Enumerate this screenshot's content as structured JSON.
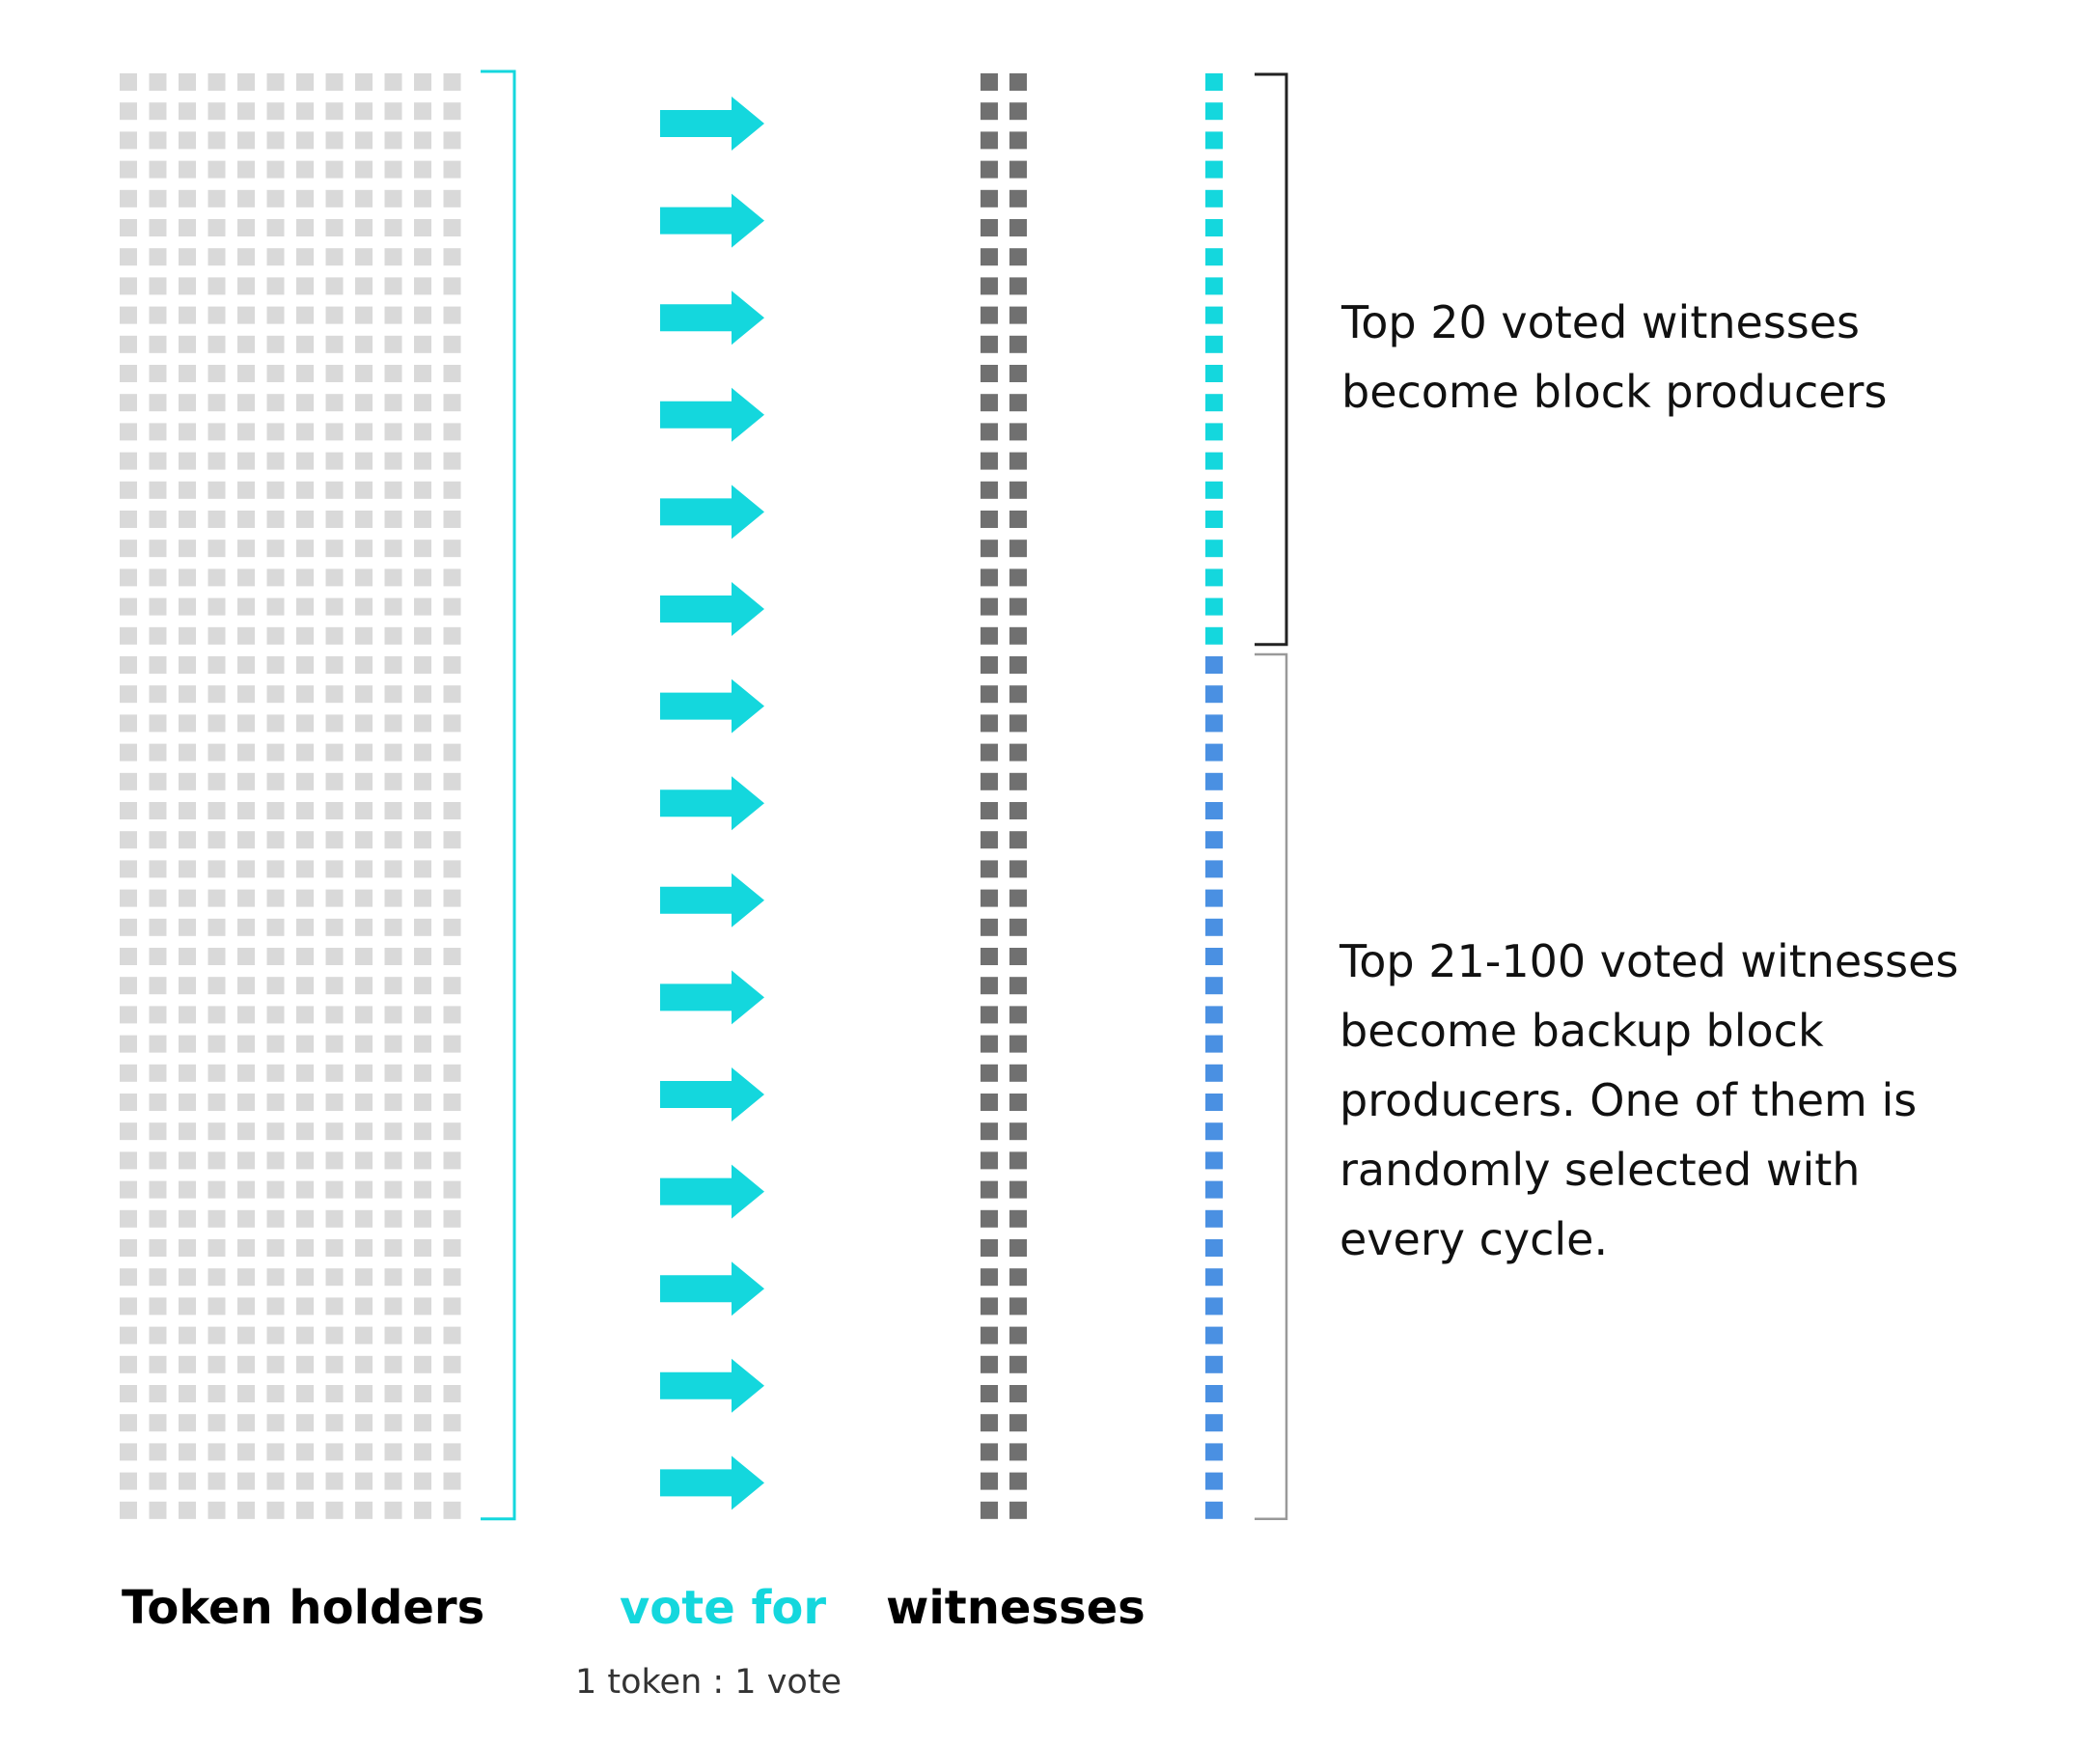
{
  "labels": {
    "token_holders": "Token holders",
    "vote_for": "vote for",
    "witnesses": "witnesses",
    "vote_ratio": "1 token : 1 vote"
  },
  "annotations": {
    "top_producers": "Top 20 voted witnesses\nbecome block producers",
    "backup_producers": "Top 21-100 voted witnesses\nbecome backup block\nproducers. One of them is\nrandomly selected with\nevery cycle."
  },
  "diagram": {
    "token_holder_columns": 12,
    "token_holder_rows": 50,
    "witness_columns": 2,
    "witness_rows": 50,
    "arrow_count": 15,
    "selected_rows": 50,
    "block_producer_count": 20
  },
  "colors": {
    "token_holder": "#d9d9d9",
    "witness": "#707070",
    "arrow": "#14d7dd",
    "block_producer": "#14d7dd",
    "backup_producer": "#4a90e2",
    "bracket_token_holders": "#14d7dd",
    "bracket_top": "#222222",
    "bracket_backup": "#999999",
    "vote_for_text": "#14d7dd"
  },
  "icons": {
    "arrow": "right-arrow-icon"
  }
}
